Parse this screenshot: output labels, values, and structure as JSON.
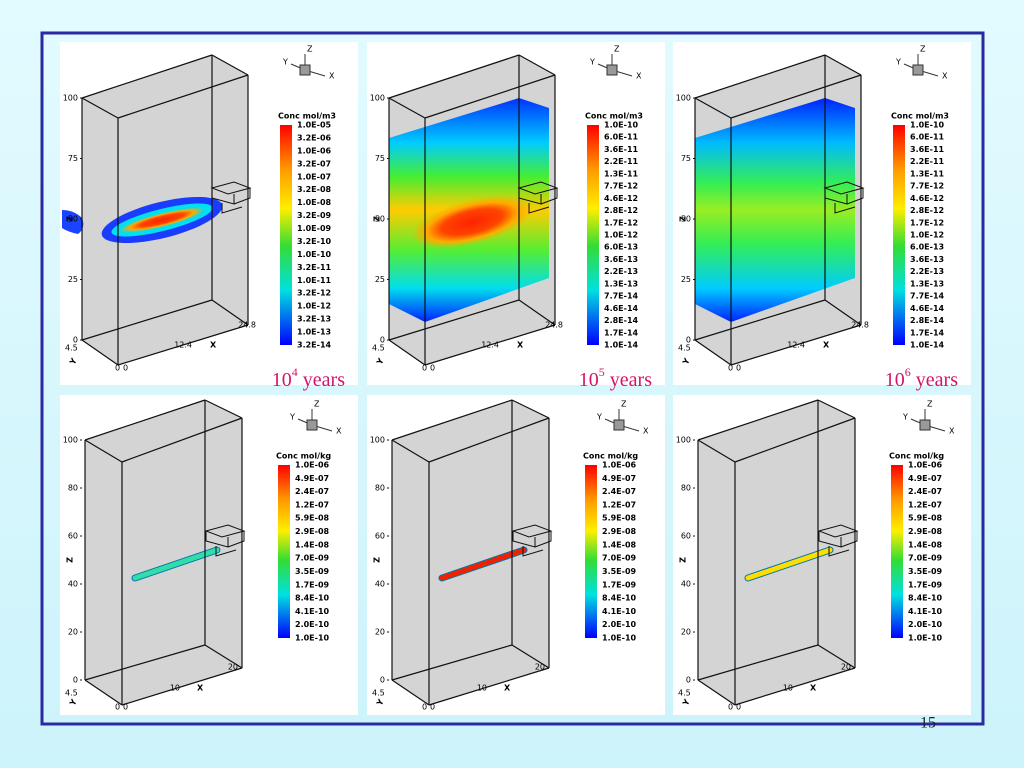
{
  "panels": [
    {
      "triad": {
        "z": "Z",
        "y": "Y",
        "x": "X"
      },
      "axes": {
        "z_label": "Z",
        "z_ticks": [
          "0",
          "25",
          "50",
          "75",
          "100"
        ],
        "x_label": "X",
        "x_ticks": [
          "0",
          "12.4",
          "24.8"
        ],
        "y_label": "Y",
        "y_ticks": [
          "4.5",
          "0"
        ]
      },
      "colorbar": {
        "title": "Conc mol/m3",
        "labels": [
          "1.0E-05",
          "3.2E-06",
          "1.0E-06",
          "3.2E-07",
          "1.0E-07",
          "3.2E-08",
          "1.0E-08",
          "3.2E-09",
          "1.0E-09",
          "3.2E-10",
          "1.0E-10",
          "3.2E-11",
          "1.0E-11",
          "3.2E-12",
          "1.0E-12",
          "3.2E-13",
          "1.0E-13",
          "3.2E-14"
        ]
      },
      "caption": {
        "base": "10",
        "exponent": "4",
        "unit": "years"
      }
    },
    {
      "triad": {
        "z": "Z",
        "y": "Y",
        "x": "X"
      },
      "axes": {
        "z_label": "Z",
        "z_ticks": [
          "0",
          "25",
          "50",
          "75",
          "100"
        ],
        "x_label": "X",
        "x_ticks": [
          "0",
          "12.4",
          "24.8"
        ],
        "y_label": "Y",
        "y_ticks": [
          "4.5",
          "0"
        ]
      },
      "colorbar": {
        "title": "Conc mol/m3",
        "labels": [
          "1.0E-10",
          "6.0E-11",
          "3.6E-11",
          "2.2E-11",
          "1.3E-11",
          "7.7E-12",
          "4.6E-12",
          "2.8E-12",
          "1.7E-12",
          "1.0E-12",
          "6.0E-13",
          "3.6E-13",
          "2.2E-13",
          "1.3E-13",
          "7.7E-14",
          "4.6E-14",
          "2.8E-14",
          "1.7E-14",
          "1.0E-14"
        ]
      },
      "caption": {
        "base": "10",
        "exponent": "5",
        "unit": "years"
      }
    },
    {
      "triad": {
        "z": "Z",
        "y": "Y",
        "x": "X"
      },
      "axes": {
        "z_label": "Z",
        "z_ticks": [
          "0",
          "25",
          "50",
          "75",
          "100"
        ],
        "x_label": "X",
        "x_ticks": [
          "0",
          "12.4",
          "24.8"
        ],
        "y_label": "Y",
        "y_ticks": [
          "4.5",
          "0"
        ]
      },
      "colorbar": {
        "title": "Conc mol/m3",
        "labels": [
          "1.0E-10",
          "6.0E-11",
          "3.6E-11",
          "2.2E-11",
          "1.3E-11",
          "7.7E-12",
          "4.6E-12",
          "2.8E-12",
          "1.7E-12",
          "1.0E-12",
          "6.0E-13",
          "3.6E-13",
          "2.2E-13",
          "1.3E-13",
          "7.7E-14",
          "4.6E-14",
          "2.8E-14",
          "1.7E-14",
          "1.0E-14"
        ]
      },
      "caption": {
        "base": "10",
        "exponent": "6",
        "unit": "years"
      }
    },
    {
      "triad": {
        "z": "Z",
        "y": "Y",
        "x": "X"
      },
      "axes": {
        "z_label": "Z",
        "z_ticks": [
          "0",
          "20",
          "40",
          "60",
          "80",
          "100"
        ],
        "x_label": "X",
        "x_ticks": [
          "0",
          "10",
          "20"
        ],
        "y_label": "Y",
        "y_ticks": [
          "4.5",
          "0"
        ]
      },
      "colorbar": {
        "title": "Conc mol/kg",
        "labels": [
          "1.0E-06",
          "4.9E-07",
          "2.4E-07",
          "1.2E-07",
          "5.9E-08",
          "2.9E-08",
          "1.4E-08",
          "7.0E-09",
          "3.5E-09",
          "1.7E-09",
          "8.4E-10",
          "4.1E-10",
          "2.0E-10",
          "1.0E-10"
        ]
      }
    },
    {
      "triad": {
        "z": "Z",
        "y": "Y",
        "x": "X"
      },
      "axes": {
        "z_label": "Z",
        "z_ticks": [
          "0",
          "20",
          "40",
          "60",
          "80",
          "100"
        ],
        "x_label": "X",
        "x_ticks": [
          "0",
          "10",
          "20"
        ],
        "y_label": "Y",
        "y_ticks": [
          "4.5",
          "0"
        ]
      },
      "colorbar": {
        "title": "Conc mol/kg",
        "labels": [
          "1.0E-06",
          "4.9E-07",
          "2.4E-07",
          "1.2E-07",
          "5.9E-08",
          "2.9E-08",
          "1.4E-08",
          "7.0E-09",
          "3.5E-09",
          "1.7E-09",
          "8.4E-10",
          "4.1E-10",
          "2.0E-10",
          "1.0E-10"
        ]
      }
    },
    {
      "triad": {
        "z": "Z",
        "y": "Y",
        "x": "X"
      },
      "axes": {
        "z_label": "Z",
        "z_ticks": [
          "0",
          "20",
          "40",
          "60",
          "80",
          "100"
        ],
        "x_label": "X",
        "x_ticks": [
          "0",
          "10",
          "20"
        ],
        "y_label": "Y",
        "y_ticks": [
          "4.5",
          "0"
        ]
      },
      "colorbar": {
        "title": "Conc mol/kg",
        "labels": [
          "1.0E-06",
          "4.9E-07",
          "2.4E-07",
          "1.2E-07",
          "5.9E-08",
          "2.9E-08",
          "1.4E-08",
          "7.0E-09",
          "3.5E-09",
          "1.7E-09",
          "8.4E-10",
          "4.1E-10",
          "2.0E-10",
          "1.0E-10"
        ]
      }
    }
  ],
  "slide_number": "15"
}
